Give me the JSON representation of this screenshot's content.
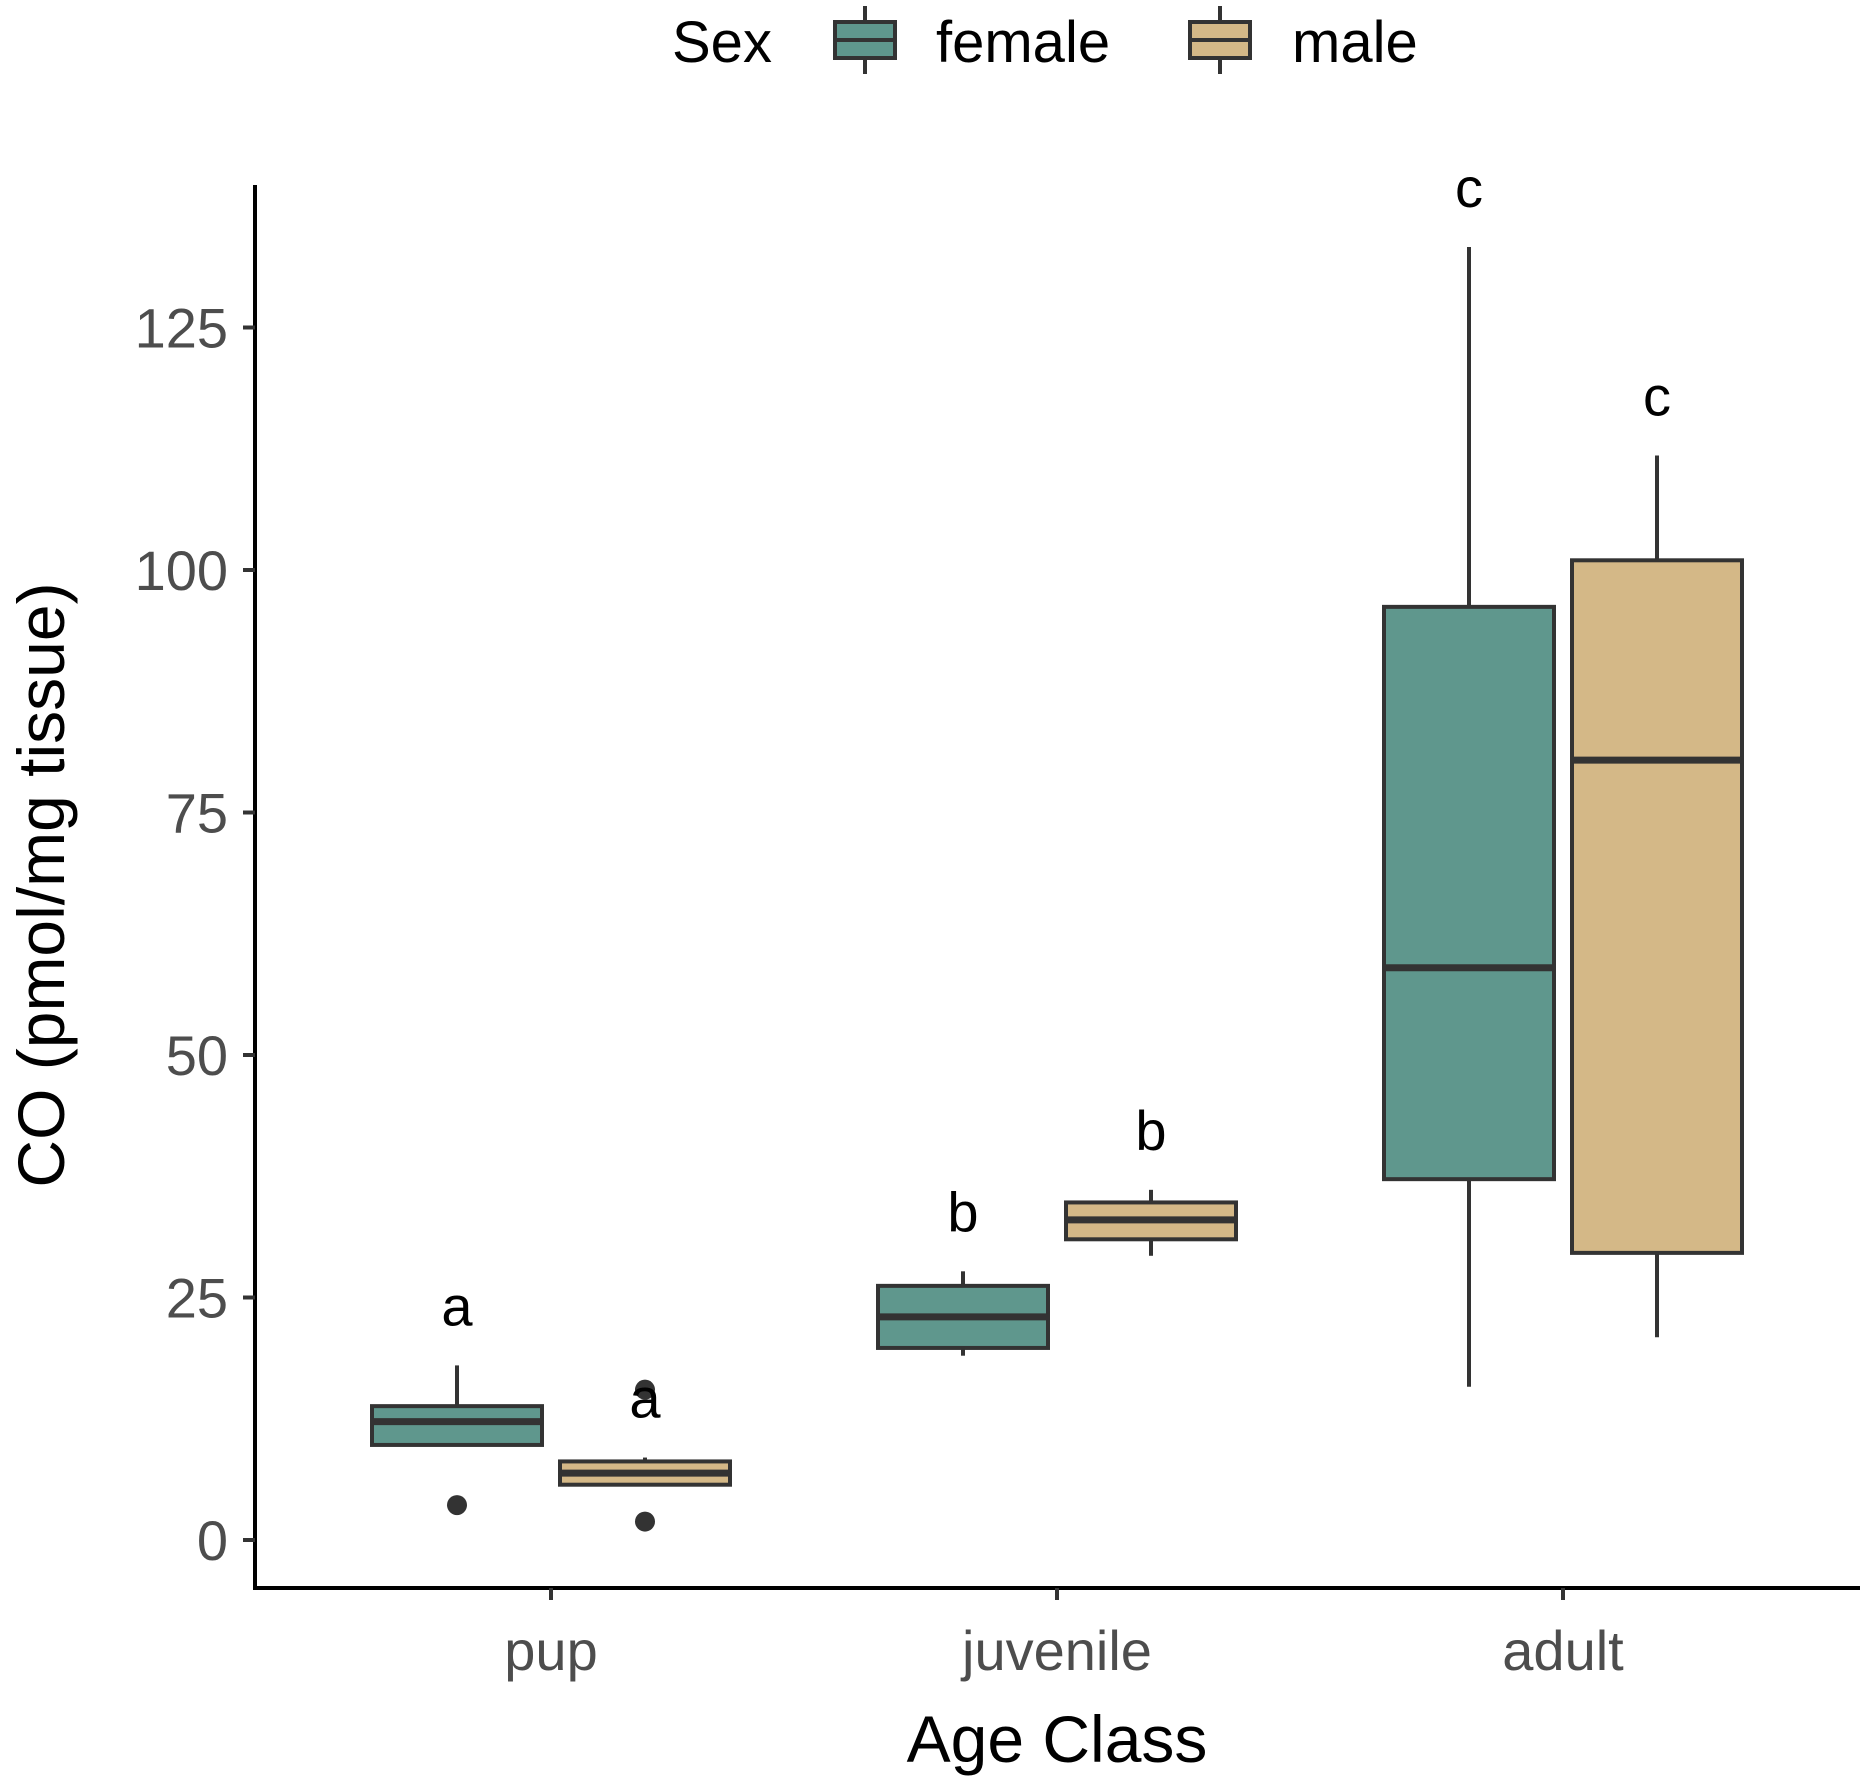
{
  "chart_data": {
    "type": "boxplot",
    "xlabel": "Age Class",
    "ylabel": "CO (pmol/mg tissue)",
    "ylim": [
      -4,
      140
    ],
    "yticks": [
      0,
      25,
      50,
      75,
      100,
      125
    ],
    "categories": [
      "pup",
      "juvenile",
      "adult"
    ],
    "legend": {
      "title": "Sex",
      "position": "top",
      "entries": [
        {
          "name": "female",
          "color": "#5f978d"
        },
        {
          "name": "male",
          "color": "#d4b887"
        }
      ]
    },
    "series": [
      {
        "name": "female",
        "color": "#5f978d",
        "boxes": [
          {
            "category": "pup",
            "whisker_low": 9.8,
            "q1": 9.8,
            "median": 12.2,
            "q3": 13.8,
            "whisker_high": 18.0,
            "outliers": [
              3.6
            ],
            "letter": "a"
          },
          {
            "category": "juvenile",
            "whisker_low": 19.0,
            "q1": 19.8,
            "median": 23.0,
            "q3": 26.2,
            "whisker_high": 27.7,
            "outliers": [],
            "letter": "b"
          },
          {
            "category": "adult",
            "whisker_low": 15.8,
            "q1": 37.2,
            "median": 59.0,
            "q3": 96.2,
            "whisker_high": 133.3,
            "outliers": [],
            "letter": "c"
          }
        ]
      },
      {
        "name": "male",
        "color": "#d4b887",
        "boxes": [
          {
            "category": "pup",
            "whisker_low": 5.7,
            "q1": 5.7,
            "median": 6.9,
            "q3": 8.1,
            "whisker_high": 8.5,
            "outliers": [
              1.9,
              15.5
            ],
            "letter": "a"
          },
          {
            "category": "juvenile",
            "whisker_low": 29.3,
            "q1": 31.0,
            "median": 33.0,
            "q3": 34.8,
            "whisker_high": 36.1,
            "outliers": [],
            "letter": "b"
          },
          {
            "category": "adult",
            "whisker_low": 20.9,
            "q1": 29.6,
            "median": 80.4,
            "q3": 101.0,
            "whisker_high": 111.8,
            "outliers": [],
            "letter": "c"
          }
        ]
      }
    ]
  }
}
